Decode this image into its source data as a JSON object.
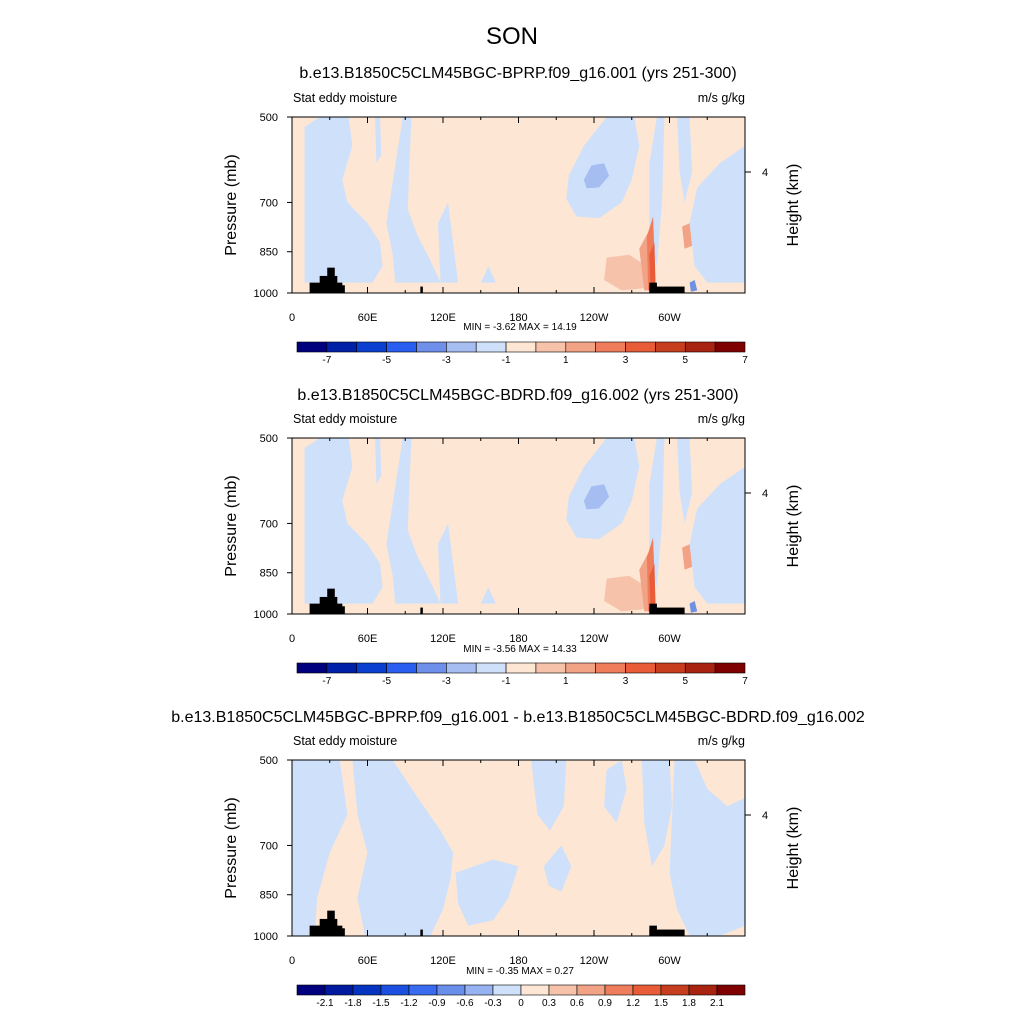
{
  "figure": {
    "title": "SON"
  },
  "chart_data": [
    {
      "type": "heatmap",
      "title": "b.e13.B1850C5CLM45BGC-BPRP.f09_g16.001 (yrs 251-300)",
      "left_string": "Stat eddy moisture",
      "right_string": "m/s g/kg",
      "ylabel": "Pressure (mb)",
      "ylabel_right": "Height (km)",
      "x_ticks": [
        "0",
        "60E",
        "120E",
        "180",
        "120W",
        "60W"
      ],
      "x_tick_values": [
        0,
        60,
        120,
        180,
        240,
        300
      ],
      "xlim": [
        0,
        360
      ],
      "y_ticks": [
        "500",
        "700",
        "850",
        "1000"
      ],
      "y_tick_values": [
        500,
        700,
        850,
        1000
      ],
      "ylim": [
        1000,
        500
      ],
      "right_ticks": [
        "4"
      ],
      "minmax": "MIN =  -3.62  MAX =  14.19",
      "min": -3.62,
      "max": 14.19,
      "colorbar": {
        "labels": [
          "-7",
          "-5",
          "-3",
          "-1",
          "1",
          "3",
          "5",
          "7"
        ],
        "colors": [
          "#00007f",
          "#0020a8",
          "#0a3fd0",
          "#2a5ef0",
          "#6f90ea",
          "#a6bdf2",
          "#cfe1fa",
          "#fde6d4",
          "#f6c3aa",
          "#f2a285",
          "#ef7d5b",
          "#e85c38",
          "#c73e1e",
          "#a82410",
          "#7f0000"
        ]
      }
    },
    {
      "type": "heatmap",
      "title": "b.e13.B1850C5CLM45BGC-BDRD.f09_g16.002 (yrs 251-300)",
      "left_string": "Stat eddy moisture",
      "right_string": "m/s g/kg",
      "ylabel": "Pressure (mb)",
      "ylabel_right": "Height (km)",
      "x_ticks": [
        "0",
        "60E",
        "120E",
        "180",
        "120W",
        "60W"
      ],
      "x_tick_values": [
        0,
        60,
        120,
        180,
        240,
        300
      ],
      "xlim": [
        0,
        360
      ],
      "y_ticks": [
        "500",
        "700",
        "850",
        "1000"
      ],
      "y_tick_values": [
        500,
        700,
        850,
        1000
      ],
      "ylim": [
        1000,
        500
      ],
      "right_ticks": [
        "4"
      ],
      "minmax": "MIN =  -3.56  MAX =  14.33",
      "min": -3.56,
      "max": 14.33,
      "colorbar": {
        "labels": [
          "-7",
          "-5",
          "-3",
          "-1",
          "1",
          "3",
          "5",
          "7"
        ],
        "colors": [
          "#00007f",
          "#0020a8",
          "#0a3fd0",
          "#2a5ef0",
          "#6f90ea",
          "#a6bdf2",
          "#cfe1fa",
          "#fde6d4",
          "#f6c3aa",
          "#f2a285",
          "#ef7d5b",
          "#e85c38",
          "#c73e1e",
          "#a82410",
          "#7f0000"
        ]
      }
    },
    {
      "type": "heatmap",
      "title": "b.e13.B1850C5CLM45BGC-BPRP.f09_g16.001 - b.e13.B1850C5CLM45BGC-BDRD.f09_g16.002",
      "left_string": "Stat eddy moisture",
      "right_string": "m/s g/kg",
      "ylabel": "Pressure (mb)",
      "ylabel_right": "Height (km)",
      "x_ticks": [
        "0",
        "60E",
        "120E",
        "180",
        "120W",
        "60W"
      ],
      "x_tick_values": [
        0,
        60,
        120,
        180,
        240,
        300
      ],
      "xlim": [
        0,
        360
      ],
      "y_ticks": [
        "500",
        "700",
        "850",
        "1000"
      ],
      "y_tick_values": [
        500,
        700,
        850,
        1000
      ],
      "ylim": [
        1000,
        500
      ],
      "right_ticks": [
        "4"
      ],
      "minmax": "MIN =  -0.35  MAX =   0.27",
      "min": -0.35,
      "max": 0.27,
      "colorbar": {
        "labels": [
          "-2.1",
          "-1.8",
          "-1.5",
          "-1.2",
          "-0.9",
          "-0.6",
          "-0.3",
          "0",
          "0.3",
          "0.6",
          "0.9",
          "1.2",
          "1.5",
          "1.8",
          "2.1"
        ],
        "colors": [
          "#00007f",
          "#001a9f",
          "#0535c0",
          "#1a4fe0",
          "#3a6aef",
          "#6a8fea",
          "#97b2f0",
          "#cfe1fa",
          "#fde6d4",
          "#f6c3aa",
          "#f2a285",
          "#ef7d5b",
          "#e85c38",
          "#c73e1e",
          "#a82410",
          "#7f0000"
        ]
      }
    }
  ]
}
